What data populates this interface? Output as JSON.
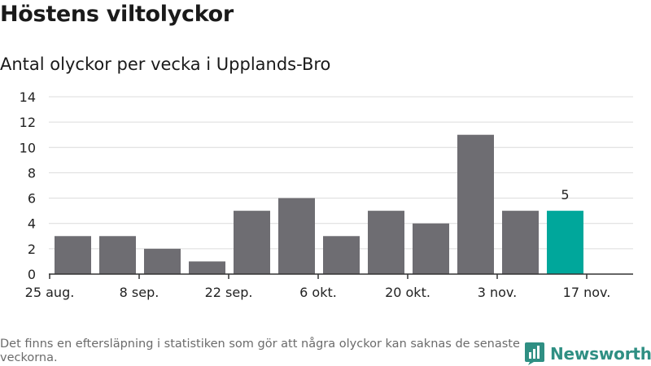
{
  "header": {
    "title": "Höstens viltolyckor",
    "subtitle": "Antal olyckor per vecka i Upplands-Bro"
  },
  "footnote": "Det finns en eftersläpning i statistiken som gör att några olyckor kan saknas de senaste veckorna.",
  "brand": {
    "name": "Newsworthy",
    "icon": "newsworthy-logo-icon",
    "color": "#2f8f83"
  },
  "colors": {
    "bar": "#6e6d72",
    "highlight": "#00a79b",
    "grid": "#dcdcdc",
    "axis": "#333333"
  },
  "chart_data": {
    "type": "bar",
    "title": "Antal olyckor per vecka i Upplands-Bro",
    "xlabel": "",
    "ylabel": "",
    "ylim": [
      0,
      14
    ],
    "yticks": [
      0,
      2,
      4,
      6,
      8,
      10,
      12,
      14
    ],
    "xtick_labels": [
      "25 aug.",
      "8 sep.",
      "22 sep.",
      "6 okt.",
      "20 okt.",
      "3 nov.",
      "17 nov."
    ],
    "values": [
      3,
      3,
      2,
      1,
      5,
      6,
      3,
      5,
      4,
      11,
      5,
      5
    ],
    "highlight_index": 11,
    "highlight_label": "5",
    "grid": true,
    "legend": "none"
  }
}
